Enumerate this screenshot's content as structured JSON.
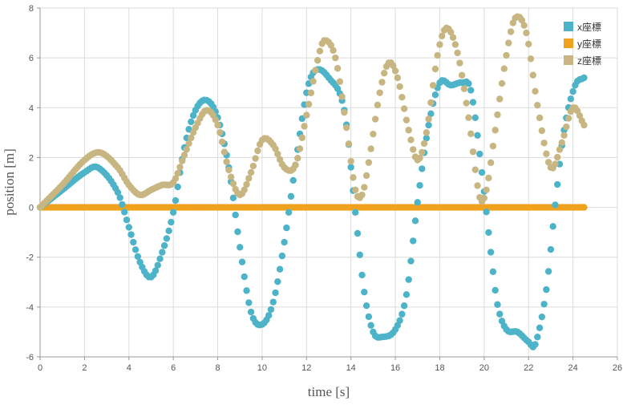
{
  "colors": {
    "x": "#4cb3c8",
    "y": "#f0a21e",
    "z": "#c8b682",
    "grid": "#dcdcdc",
    "axis": "#999999"
  },
  "chart_data": {
    "type": "scatter",
    "xlabel": "time [s]",
    "ylabel": "position [m]",
    "xlim": [
      0,
      26
    ],
    "ylim": [
      -6,
      8
    ],
    "x_ticks": [
      0,
      2,
      4,
      6,
      8,
      10,
      12,
      14,
      16,
      18,
      20,
      22,
      24,
      26
    ],
    "y_ticks": [
      -6,
      -4,
      -2,
      0,
      2,
      4,
      6,
      8
    ],
    "grid": true,
    "legend_position": "top-right",
    "marker": "circle",
    "series": [
      {
        "name": "x座標",
        "color_key": "x",
        "points": [
          [
            0,
            0
          ],
          [
            1,
            0.7
          ],
          [
            2,
            1.4
          ],
          [
            2.6,
            1.6
          ],
          [
            3.5,
            0.6
          ],
          [
            4,
            -0.8
          ],
          [
            4.5,
            -2.2
          ],
          [
            5,
            -2.8
          ],
          [
            5.5,
            -1.8
          ],
          [
            6,
            -0.2
          ],
          [
            6.5,
            2.4
          ],
          [
            7,
            3.9
          ],
          [
            7.5,
            4.3
          ],
          [
            8,
            3.6
          ],
          [
            8.5,
            1.6
          ],
          [
            9,
            -1.6
          ],
          [
            9.5,
            -4.2
          ],
          [
            10,
            -4.7
          ],
          [
            10.5,
            -3.8
          ],
          [
            11,
            -1.4
          ],
          [
            11.5,
            1.7
          ],
          [
            12,
            4.6
          ],
          [
            12.4,
            5.5
          ],
          [
            13,
            5.2
          ],
          [
            13.7,
            3.9
          ],
          [
            14.2,
            -0.2
          ],
          [
            14.6,
            -3.4
          ],
          [
            15,
            -5.0
          ],
          [
            15.4,
            -5.2
          ],
          [
            16,
            -4.9
          ],
          [
            16.5,
            -3.5
          ],
          [
            17,
            0.2
          ],
          [
            17.5,
            3.3
          ],
          [
            18,
            5.0
          ],
          [
            18.5,
            4.9
          ],
          [
            19,
            5.0
          ],
          [
            19.4,
            4.7
          ],
          [
            19.9,
            1.4
          ],
          [
            20.3,
            -1.8
          ],
          [
            20.6,
            -3.9
          ],
          [
            21,
            -4.9
          ],
          [
            21.5,
            -5.0
          ],
          [
            22,
            -5.4
          ],
          [
            22.3,
            -5.5
          ],
          [
            22.8,
            -3.3
          ],
          [
            23.2,
            0.1
          ],
          [
            23.6,
            3.1
          ],
          [
            24.1,
            4.9
          ],
          [
            24.5,
            5.2
          ]
        ]
      },
      {
        "name": "y座標",
        "color_key": "y",
        "points": [
          [
            0,
            0
          ],
          [
            24.5,
            0
          ]
        ]
      },
      {
        "name": "z座標",
        "color_key": "z",
        "points": [
          [
            0,
            0
          ],
          [
            1,
            0.9
          ],
          [
            2,
            1.9
          ],
          [
            2.7,
            2.2
          ],
          [
            3.5,
            1.6
          ],
          [
            4,
            0.9
          ],
          [
            4.5,
            0.5
          ],
          [
            5,
            0.7
          ],
          [
            5.5,
            0.9
          ],
          [
            6,
            1.0
          ],
          [
            6.5,
            2.1
          ],
          [
            7,
            3.2
          ],
          [
            7.5,
            3.9
          ],
          [
            8,
            3.3
          ],
          [
            8.5,
            1.5
          ],
          [
            9,
            0.5
          ],
          [
            9.5,
            1.4
          ],
          [
            10,
            2.7
          ],
          [
            10.5,
            2.5
          ],
          [
            11,
            1.6
          ],
          [
            11.5,
            1.7
          ],
          [
            12,
            3.7
          ],
          [
            12.5,
            5.9
          ],
          [
            12.8,
            6.7
          ],
          [
            13.3,
            6.0
          ],
          [
            13.8,
            3.2
          ],
          [
            14.2,
            0.7
          ],
          [
            14.5,
            0.5
          ],
          [
            14.8,
            1.8
          ],
          [
            15.3,
            4.6
          ],
          [
            15.7,
            5.8
          ],
          [
            16.1,
            5.2
          ],
          [
            16.6,
            3.1
          ],
          [
            17,
            1.9
          ],
          [
            17.4,
            3.0
          ],
          [
            17.9,
            6.1
          ],
          [
            18.3,
            7.2
          ],
          [
            18.8,
            6.2
          ],
          [
            19.3,
            3.6
          ],
          [
            19.8,
            0.4
          ],
          [
            20.1,
            0.7
          ],
          [
            20.5,
            3.1
          ],
          [
            21,
            6.1
          ],
          [
            21.4,
            7.6
          ],
          [
            21.9,
            7.0
          ],
          [
            22.4,
            4.1
          ],
          [
            23,
            1.6
          ],
          [
            23.5,
            2.6
          ],
          [
            24,
            4.0
          ],
          [
            24.5,
            3.3
          ]
        ]
      }
    ]
  }
}
